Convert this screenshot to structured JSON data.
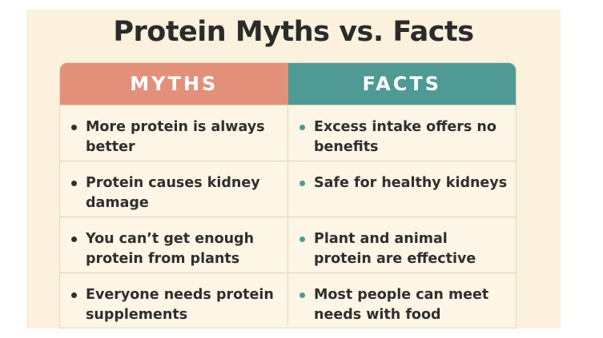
{
  "title": "Protein Myths vs. Facts",
  "headers": {
    "myths": "MYTHS",
    "facts": "FACTS"
  },
  "rows": [
    {
      "myth": "More protein is always better",
      "fact": "Excess intake offers no benefits"
    },
    {
      "myth": "Protein causes kidney damage",
      "fact": "Safe for healthy kidneys"
    },
    {
      "myth": "You can’t get enough protein from plants",
      "fact": "Plant and animal protein are effective"
    },
    {
      "myth": "Everyone needs protein supplements",
      "fact": "Most people can meet needs with food"
    }
  ],
  "colors": {
    "background": "#fbf1dc",
    "myths_header": "#e3907a",
    "facts_header": "#4f9a95",
    "text": "#2f2f2f"
  },
  "icons": {
    "myth_bullet": "bullet-dot-icon",
    "fact_bullet": "bullet-dot-icon"
  }
}
